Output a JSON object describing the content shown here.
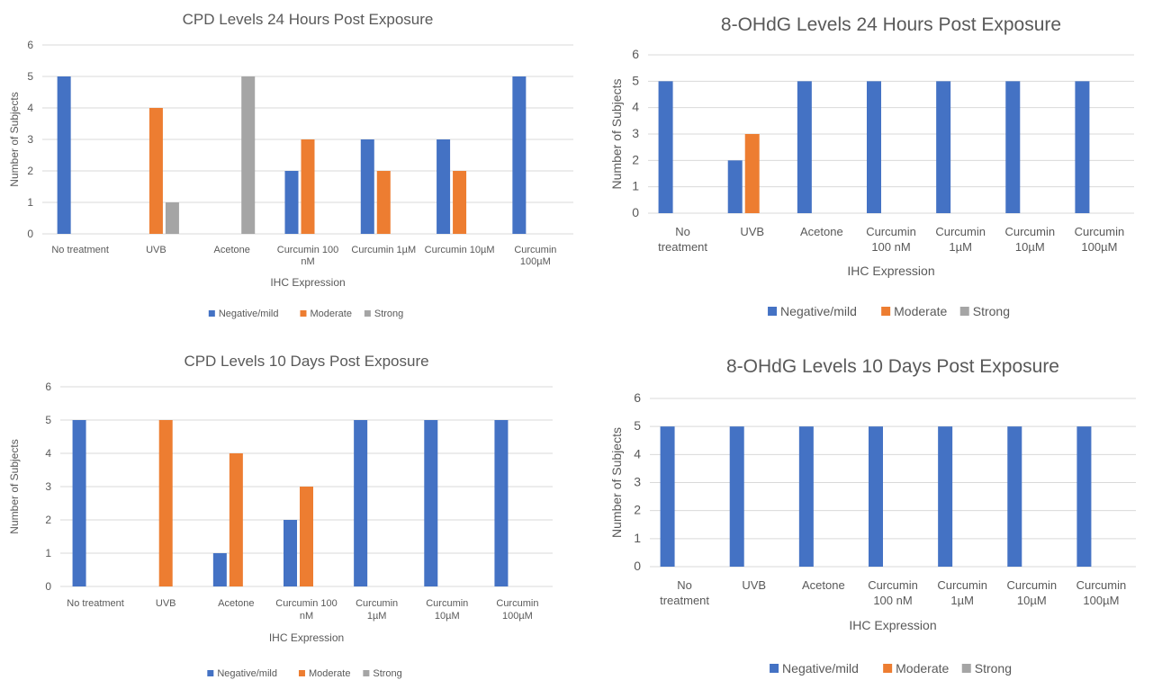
{
  "colors": {
    "negative": "#4472C4",
    "moderate": "#ED7D31",
    "strong": "#A5A5A5",
    "grid": "#D9D9D9",
    "text": "#595959"
  },
  "chart_data": [
    {
      "type": "bar",
      "title": "CPD Levels 24 Hours Post Exposure",
      "xlabel": "IHC Expression",
      "ylabel": "Number of Subjects",
      "ylim": [
        0,
        6
      ],
      "grid": true,
      "legend_position": "bottom",
      "categories": [
        "No treatment",
        "UVB",
        "Acetone",
        "Curcumin 100 nM",
        "Curcumin 1µM",
        "Curcumin 10µM",
        "Curcumin 100µM"
      ],
      "category_labels": [
        [
          "No treatment"
        ],
        [
          "UVB"
        ],
        [
          "Acetone"
        ],
        [
          "Curcumin 100",
          "nM"
        ],
        [
          "Curcumin 1µM"
        ],
        [
          "Curcumin 10µM"
        ],
        [
          "Curcumin",
          "100µM"
        ]
      ],
      "yticks": [
        "0",
        "1",
        "2",
        "3",
        "4",
        "5",
        "6"
      ],
      "series": [
        {
          "name": "Negative/mild",
          "values": [
            5,
            0,
            0,
            2,
            3,
            3,
            5
          ]
        },
        {
          "name": "Moderate",
          "values": [
            0,
            4,
            0,
            3,
            2,
            2,
            0
          ]
        },
        {
          "name": "Strong",
          "values": [
            0,
            1,
            5,
            0,
            0,
            0,
            0
          ]
        }
      ]
    },
    {
      "type": "bar",
      "title": "8-OHdG Levels 24 Hours Post Exposure",
      "xlabel": "IHC Expression",
      "ylabel": "Number of Subjects",
      "ylim": [
        0,
        6
      ],
      "grid": true,
      "legend_position": "bottom",
      "categories": [
        "No treatment",
        "UVB",
        "Acetone",
        "Curcumin 100 nM",
        "Curcumin 1µM",
        "Curcumin 10µM",
        "Curcumin 100µM"
      ],
      "category_labels": [
        [
          "No",
          "treatment"
        ],
        [
          "UVB"
        ],
        [
          "Acetone"
        ],
        [
          "Curcumin",
          "100 nM"
        ],
        [
          "Curcumin",
          "1µM"
        ],
        [
          "Curcumin",
          "10µM"
        ],
        [
          "Curcumin",
          "100µM"
        ]
      ],
      "yticks": [
        "0",
        "1",
        "2",
        "3",
        "4",
        "5",
        "6"
      ],
      "series": [
        {
          "name": "Negative/mild",
          "values": [
            5,
            2,
            5,
            5,
            5,
            5,
            5
          ]
        },
        {
          "name": "Moderate",
          "values": [
            0,
            3,
            0,
            0,
            0,
            0,
            0
          ]
        },
        {
          "name": "Strong",
          "values": [
            0,
            0,
            0,
            0,
            0,
            0,
            0
          ]
        }
      ]
    },
    {
      "type": "bar",
      "title": "CPD Levels 10 Days Post Exposure",
      "xlabel": "IHC Expression",
      "ylabel": "Number of Subjects",
      "ylim": [
        0,
        6
      ],
      "grid": true,
      "legend_position": "bottom",
      "categories": [
        "No treatment",
        "UVB",
        "Acetone",
        "Curcumin 100 nM",
        "Curcumin 1µM",
        "Curcumin 10µM",
        "Curcumin 100µM"
      ],
      "category_labels": [
        [
          "No treatment"
        ],
        [
          "UVB"
        ],
        [
          "Acetone"
        ],
        [
          "Curcumin 100",
          "nM"
        ],
        [
          "Curcumin",
          "1µM"
        ],
        [
          "Curcumin",
          "10µM"
        ],
        [
          "Curcumin",
          "100µM"
        ]
      ],
      "yticks": [
        "0",
        "1",
        "2",
        "3",
        "4",
        "5",
        "6"
      ],
      "series": [
        {
          "name": "Negative/mild",
          "values": [
            5,
            0,
            1,
            2,
            5,
            5,
            5
          ]
        },
        {
          "name": "Moderate",
          "values": [
            0,
            5,
            4,
            3,
            0,
            0,
            0
          ]
        },
        {
          "name": "Strong",
          "values": [
            0,
            0,
            0,
            0,
            0,
            0,
            0
          ]
        }
      ]
    },
    {
      "type": "bar",
      "title": "8-OHdG Levels 10 Days Post Exposure",
      "xlabel": "IHC Expression",
      "ylabel": "Number of Subjects",
      "ylim": [
        0,
        6
      ],
      "grid": true,
      "legend_position": "bottom",
      "categories": [
        "No treatment",
        "UVB",
        "Acetone",
        "Curcumin 100 nM",
        "Curcumin 1µM",
        "Curcumin 10µM",
        "Curcumin 100µM"
      ],
      "category_labels": [
        [
          "No",
          "treatment"
        ],
        [
          "UVB"
        ],
        [
          "Acetone"
        ],
        [
          "Curcumin",
          "100 nM"
        ],
        [
          "Curcumin",
          "1µM"
        ],
        [
          "Curcumin",
          "10µM"
        ],
        [
          "Curcumin",
          "100µM"
        ]
      ],
      "yticks": [
        "0",
        "1",
        "2",
        "3",
        "4",
        "5",
        "6"
      ],
      "series": [
        {
          "name": "Negative/mild",
          "values": [
            5,
            5,
            5,
            5,
            5,
            5,
            5
          ]
        },
        {
          "name": "Moderate",
          "values": [
            0,
            0,
            0,
            0,
            0,
            0,
            0
          ]
        },
        {
          "name": "Strong",
          "values": [
            0,
            0,
            0,
            0,
            0,
            0,
            0
          ]
        }
      ]
    }
  ]
}
